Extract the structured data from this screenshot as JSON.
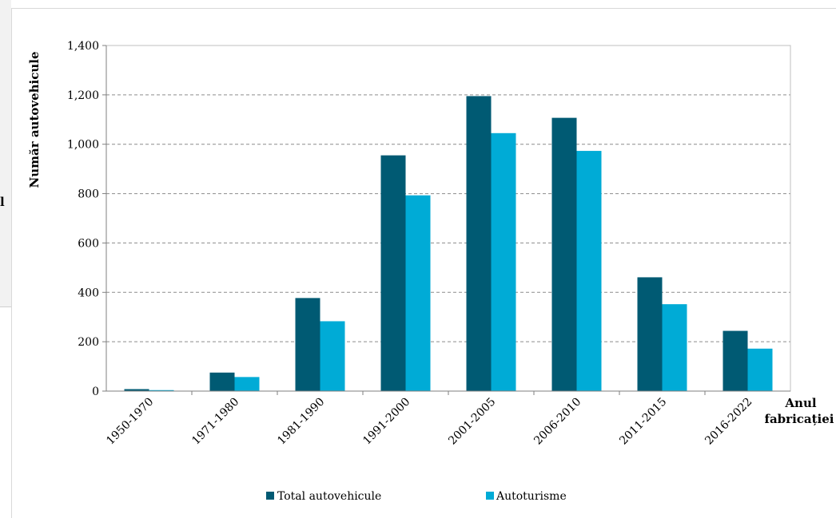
{
  "left_panel": {
    "letter": "l"
  },
  "chart_data": {
    "type": "bar",
    "title": "",
    "xlabel_lines": [
      "Anul",
      "fabricației"
    ],
    "ylabel": "Număr autovehicule",
    "categories": [
      "1950-1970",
      "1971-1980",
      "1981-1990",
      "1991-2000",
      "2001-2005",
      "2006-2010",
      "2011-2015",
      "2016-2022"
    ],
    "series": [
      {
        "name": "Total autovehicule",
        "color": "#005a73",
        "values": [
          8,
          75,
          377,
          955,
          1195,
          1107,
          461,
          244
        ]
      },
      {
        "name": "Autoturisme",
        "color": "#00abd6",
        "values": [
          4,
          57,
          283,
          793,
          1045,
          973,
          352,
          172
        ]
      }
    ],
    "ylim": [
      0,
      1400
    ],
    "yticks": [
      0,
      200,
      400,
      600,
      800,
      1000,
      1200,
      1400
    ],
    "ytick_labels": [
      "0",
      "200",
      "400",
      "600",
      "800",
      "1,000",
      "1,200",
      "1,400"
    ],
    "grid": true,
    "legend_position": "bottom"
  }
}
